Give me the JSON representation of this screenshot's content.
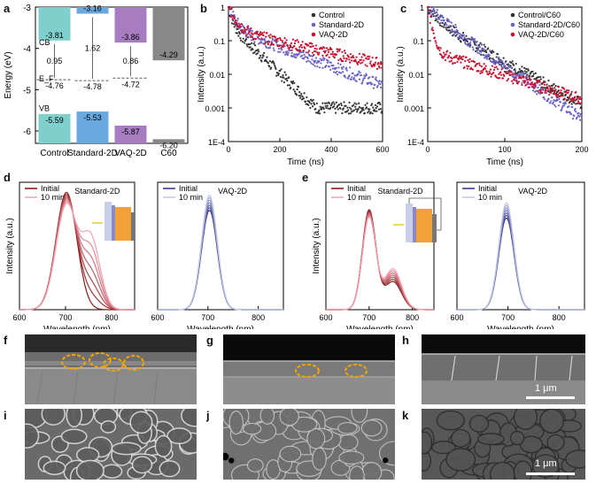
{
  "panels": {
    "a": "a",
    "b": "b",
    "c": "c",
    "d": "d",
    "e": "e",
    "f": "f",
    "g": "g",
    "h": "h",
    "i": "i",
    "j": "j",
    "k": "k"
  },
  "scale_bar": {
    "h": "1 μm",
    "k": "1 μm"
  },
  "chart_data": [
    {
      "panel": "a",
      "type": "bar",
      "ylabel": "Energy (eV)",
      "ylim": [
        -6.3,
        -3
      ],
      "yticks": [
        "-3",
        "-4",
        "-5",
        "-6"
      ],
      "categories": [
        "Control",
        "Standard-2D",
        "VAQ-2D",
        "C60"
      ],
      "cb": [
        -3.81,
        -3.16,
        -3.86,
        -4.29
      ],
      "vb": [
        -5.59,
        -5.53,
        -5.87,
        -6.2
      ],
      "ef": [
        -4.76,
        -4.78,
        -4.72,
        null
      ],
      "gaps": [
        "0.95",
        "1.62",
        "0.86"
      ],
      "band_labels": {
        "cb": "CB",
        "ef": "E_F",
        "vb": "VB"
      },
      "colors": [
        "#7fd0cc",
        "#6aa8e0",
        "#a77cc0",
        "#888888"
      ]
    },
    {
      "panel": "b",
      "type": "scatter",
      "xlabel": "Time (ns)",
      "ylabel": "Intensity (a.u.)",
      "xlim": [
        0,
        600
      ],
      "xticks": [
        0,
        200,
        400,
        600
      ],
      "ylim_log": [
        0.0001,
        1
      ],
      "yticks": [
        "1",
        "0.1",
        "0.01",
        "0.001",
        "1E-4"
      ],
      "series": [
        {
          "name": "Control",
          "color": "#333333",
          "tau1": 12,
          "a1": 0.7,
          "tau2": 60,
          "a2": 0.3,
          "floor": 0.001
        },
        {
          "name": "Standard-2D",
          "color": "#6a62c8",
          "tau1": 20,
          "a1": 0.75,
          "tau2": 150,
          "a2": 0.25,
          "floor": 0.003
        },
        {
          "name": "VAQ-2D",
          "color": "#c8102e",
          "tau1": 25,
          "a1": 0.8,
          "tau2": 260,
          "a2": 0.2,
          "floor": 0.004
        }
      ]
    },
    {
      "panel": "c",
      "type": "scatter",
      "xlabel": "Time (ns)",
      "ylabel": "Intensity (a.u.)",
      "xlim": [
        0,
        200
      ],
      "xticks": [
        0,
        100,
        200
      ],
      "ylim_log": [
        0.0001,
        1
      ],
      "yticks": [
        "1",
        "0.1",
        "0.01",
        "0.001",
        "1E-4"
      ],
      "series": [
        {
          "name": "Control/C60",
          "color": "#333333",
          "tau1": 12,
          "a1": 0.6,
          "tau2": 35,
          "a2": 0.4,
          "floor": 0.0003
        },
        {
          "name": "Standard-2D/C60",
          "color": "#6a62c8",
          "tau1": 15,
          "a1": 0.4,
          "tau2": 28,
          "a2": 0.6,
          "floor": 0.0003
        },
        {
          "name": "VAQ-2D/C60",
          "color": "#c8102e",
          "tau1": 4,
          "a1": 0.95,
          "tau2": 60,
          "a2": 0.05,
          "floor": 0.0003
        }
      ]
    },
    {
      "panel": "d-left",
      "type": "line",
      "inset_label": "Standard-2D",
      "xlabel": "Wavelength (nm)",
      "ylabel": "Intensity (a.u.)",
      "xlim": [
        600,
        850
      ],
      "xticks": [
        600,
        700,
        800
      ],
      "legend": [
        {
          "name": "Initial",
          "color": "#8b1a1a"
        },
        {
          "name": "10 min",
          "color": "#f4a3b3"
        }
      ]
    },
    {
      "panel": "d-right",
      "type": "line",
      "inset_label": "VAQ-2D",
      "xlabel": "Wavelength (nm)",
      "xlim": [
        600,
        850
      ],
      "xticks": [
        600,
        700,
        800
      ],
      "legend": [
        {
          "name": "Initial",
          "color": "#3b3b8a"
        },
        {
          "name": "10 min",
          "color": "#c4c8e8"
        }
      ]
    },
    {
      "panel": "e-left",
      "type": "line",
      "inset_label": "Standard-2D",
      "xlabel": "Wavelength (nm)",
      "ylabel": "Intensity (a.u.)",
      "xlim": [
        600,
        850
      ],
      "xticks": [
        600,
        700,
        800
      ],
      "legend": [
        {
          "name": "Initial",
          "color": "#8b1a1a"
        },
        {
          "name": "10 min",
          "color": "#f4a3b3"
        }
      ]
    },
    {
      "panel": "e-right",
      "type": "line",
      "inset_label": "VAQ-2D",
      "xlabel": "Wavelength (nm)",
      "xlim": [
        600,
        850
      ],
      "xticks": [
        600,
        700,
        800
      ],
      "legend": [
        {
          "name": "Initial",
          "color": "#3b3b8a"
        },
        {
          "name": "10 min",
          "color": "#c4c8e8"
        }
      ]
    }
  ]
}
